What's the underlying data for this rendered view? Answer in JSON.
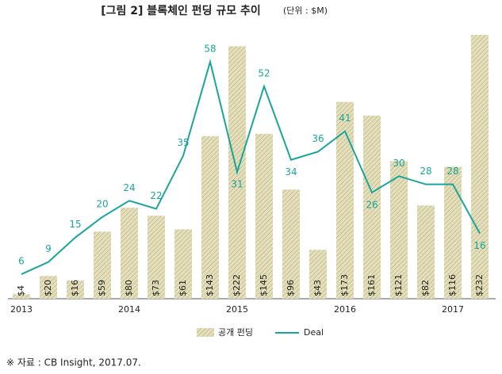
{
  "chart_data": {
    "type": "combo",
    "title": "[그림 2] 블록체인 펀딩 규모 추이",
    "subtitle": "(단위 : $M)",
    "categories": [
      "2013",
      null,
      null,
      null,
      "2014",
      null,
      null,
      null,
      "2015",
      null,
      null,
      null,
      "2016",
      null,
      null,
      null,
      "2017",
      null
    ],
    "series": [
      {
        "name": "공개 펀딩",
        "type": "bar",
        "color": "#d6cfa0",
        "values": [
          4,
          20,
          16,
          59,
          80,
          73,
          61,
          143,
          222,
          145,
          96,
          43,
          173,
          161,
          121,
          82,
          116,
          232
        ],
        "value_labels": [
          "$4",
          "$20",
          "$16",
          "$59",
          "$80",
          "$73",
          "$61",
          "$143",
          "$222",
          "$145",
          "$96",
          "$43",
          "$173",
          "$161",
          "$121",
          "$82",
          "$116",
          "$232"
        ]
      },
      {
        "name": "Deal",
        "type": "line",
        "color": "#1aa59a",
        "values": [
          6,
          9,
          15,
          20,
          24,
          22,
          35,
          58,
          31,
          52,
          34,
          36,
          41,
          26,
          30,
          28,
          28,
          16
        ]
      }
    ],
    "legend": "bottom",
    "note": "※ 자료 : CB Insight, 2017.07."
  }
}
